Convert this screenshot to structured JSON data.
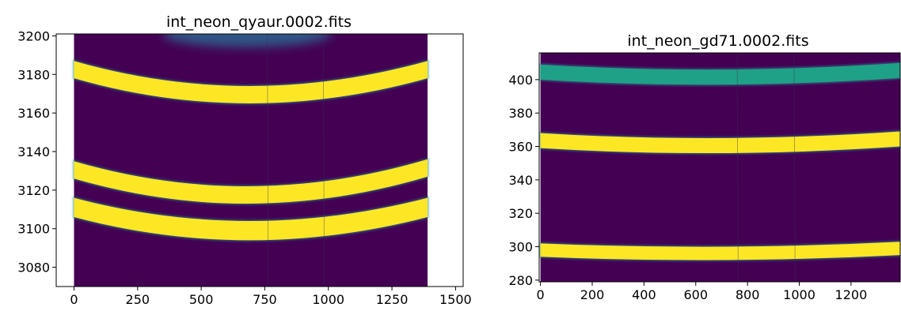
{
  "chart_data": [
    {
      "type": "heatmap",
      "title": "int_neon_qyaur.0002.fits",
      "xlabel": "",
      "ylabel": "",
      "xlim": [
        -70,
        1530
      ],
      "ylim": [
        3070,
        3201
      ],
      "image_extent": {
        "x": [
          0,
          1390
        ],
        "y": [
          3070,
          3201
        ]
      },
      "xticks": [
        0,
        250,
        500,
        750,
        1000,
        1250,
        1500
      ],
      "yticks": [
        3080,
        3100,
        3120,
        3140,
        3160,
        3180,
        3200
      ],
      "colormap": "viridis",
      "background_color": "#440154",
      "arcs": [
        {
          "y_left_top": 3187,
          "y_left_bottom": 3178,
          "y_min_top": 3174,
          "y_min_bottom": 3165,
          "x_min": 690,
          "y_right_top": 3187,
          "y_right_bottom": 3178,
          "color": "#fde725"
        },
        {
          "y_left_top": 3135,
          "y_left_bottom": 3126,
          "y_min_top": 3122,
          "y_min_bottom": 3113,
          "x_min": 690,
          "y_right_top": 3136,
          "y_right_bottom": 3127,
          "color": "#fde725"
        },
        {
          "y_left_top": 3116,
          "y_left_bottom": 3106,
          "y_min_top": 3104,
          "y_min_bottom": 3094,
          "x_min": 690,
          "y_right_top": 3116,
          "y_right_bottom": 3106,
          "color": "#fde725"
        }
      ],
      "top_glow": {
        "x_center": 680,
        "y_bottom": 3195,
        "half_width": 330,
        "color": "#2f5f8c"
      }
    },
    {
      "type": "heatmap",
      "title": "int_neon_gd71.0002.fits",
      "xlabel": "",
      "ylabel": "",
      "xlim": [
        -5,
        1390
      ],
      "ylim": [
        279,
        416
      ],
      "image_extent": {
        "x": [
          0,
          1390
        ],
        "y": [
          279,
          416
        ]
      },
      "xticks": [
        0,
        200,
        400,
        600,
        800,
        1000,
        1200
      ],
      "yticks": [
        280,
        300,
        320,
        340,
        360,
        380,
        400
      ],
      "colormap": "viridis",
      "background_color": "#440154",
      "arcs": [
        {
          "y_left_top": 409,
          "y_left_bottom": 400,
          "y_min_top": 406,
          "y_min_bottom": 397,
          "x_min": 690,
          "y_right_top": 410,
          "y_right_bottom": 401,
          "color": "#1fa187"
        },
        {
          "y_left_top": 368,
          "y_left_bottom": 359,
          "y_min_top": 365,
          "y_min_bottom": 356,
          "x_min": 690,
          "y_right_top": 369,
          "y_right_bottom": 360,
          "color": "#fde725"
        },
        {
          "y_left_top": 302,
          "y_left_bottom": 294,
          "y_min_top": 300,
          "y_min_bottom": 292,
          "x_min": 690,
          "y_right_top": 303,
          "y_right_bottom": 295,
          "color": "#fde725"
        }
      ]
    }
  ]
}
